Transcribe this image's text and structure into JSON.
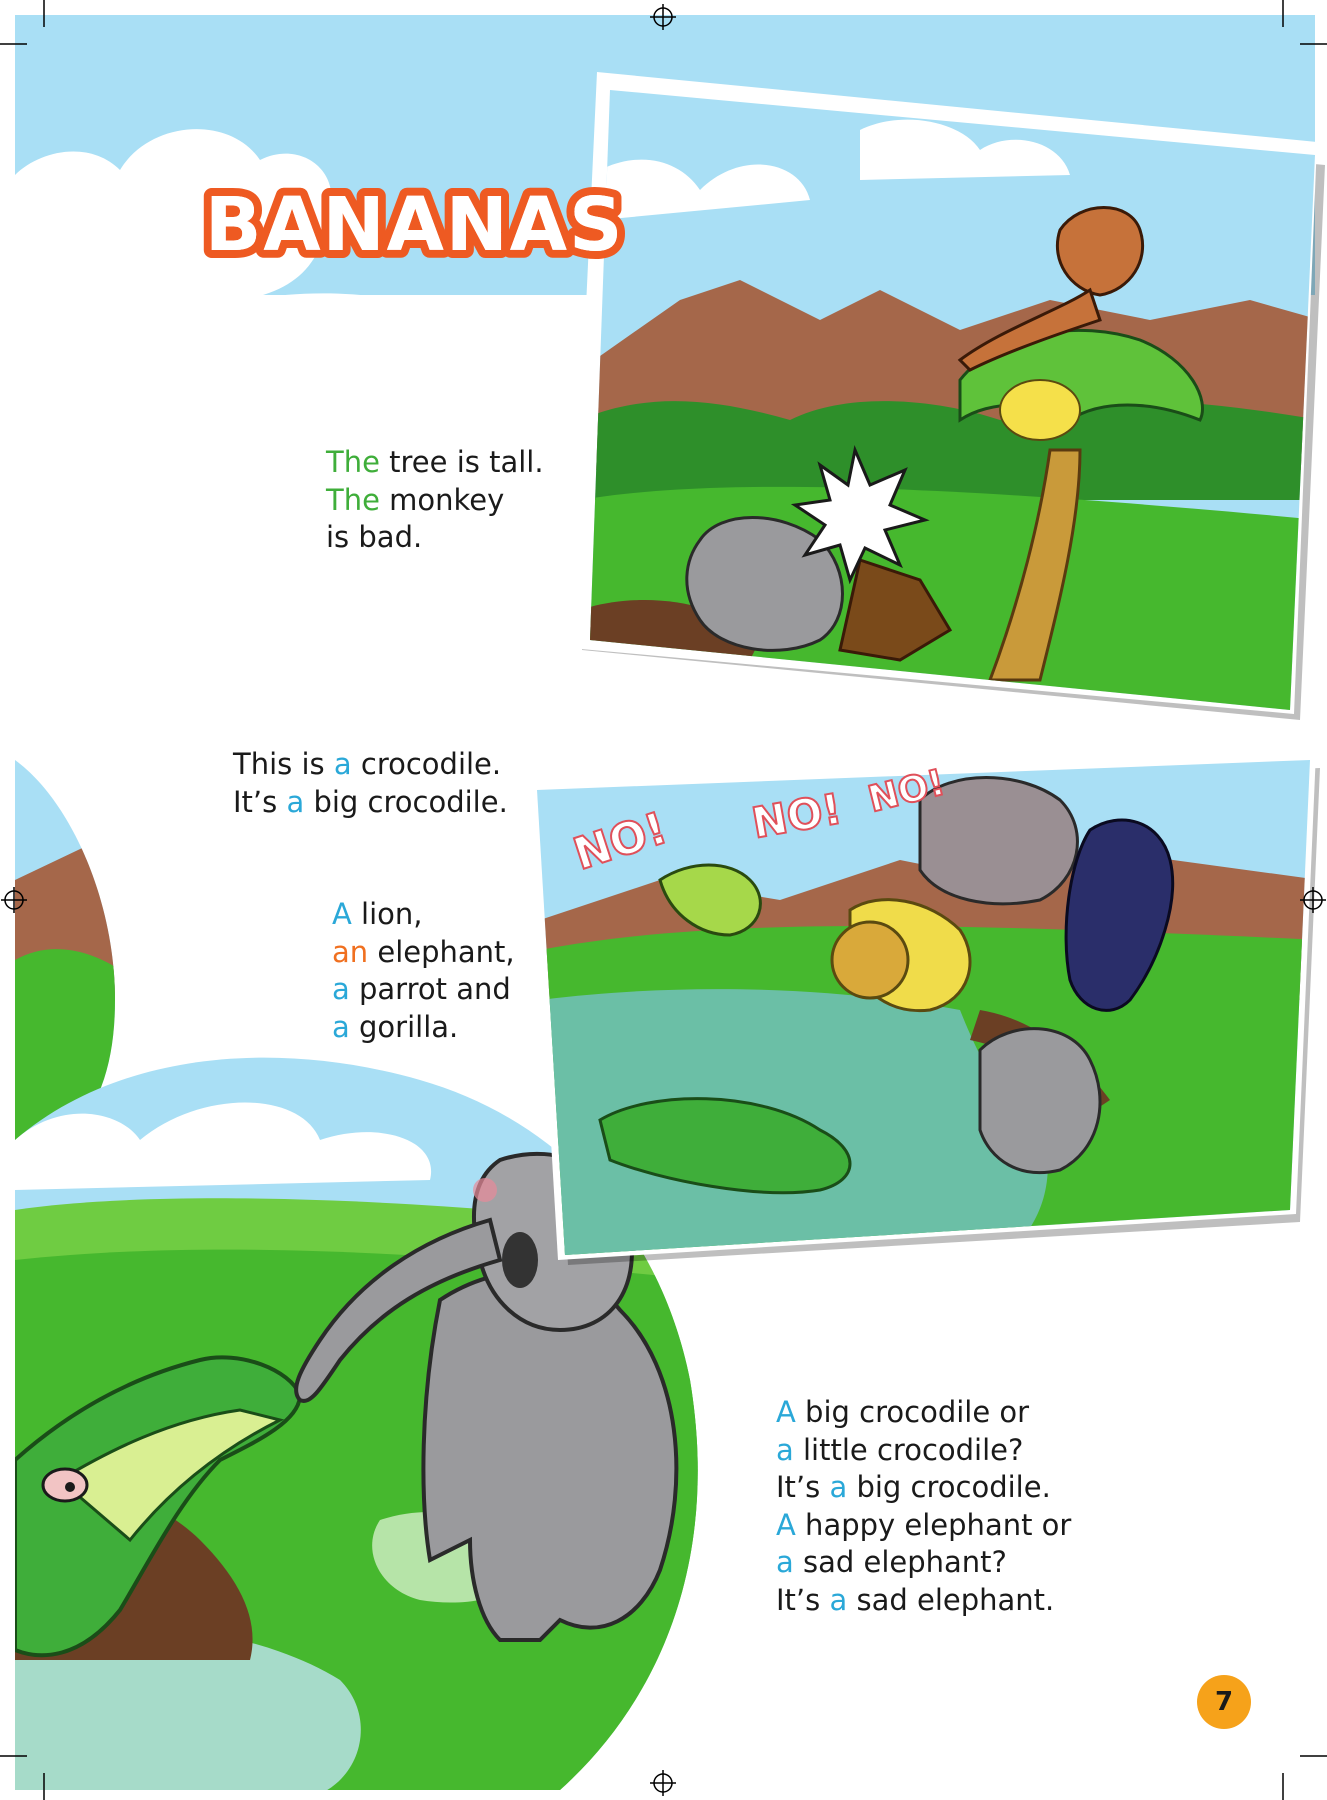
{
  "title": "BANANAS",
  "page_number": "7",
  "colors": {
    "sky": "#a9dff5",
    "grass": "#46b82e",
    "mountain": "#a5674a",
    "title_orange": "#ee5a22",
    "article_green": "#3fae3a",
    "article_blue": "#2aa8d8",
    "article_orange": "#f07020",
    "page_badge": "#f6a21a"
  },
  "panels": [
    {
      "bubbles": [],
      "description": "monkey in palm tree with bananas, elephant knocked down by tree stump"
    },
    {
      "bubbles": [
        "NO!",
        "NO!",
        "NO!"
      ],
      "description": "parrot, lion, hippo, gorilla and elephant falling into water near a crocodile"
    },
    {
      "bubbles": [],
      "description": "crocodile biting elephant trunk in river"
    }
  ],
  "text_blocks": {
    "block1": [
      [
        {
          "t": "The",
          "c": "g"
        },
        {
          "t": " tree is tall.",
          "c": ""
        }
      ],
      [
        {
          "t": "The",
          "c": "g"
        },
        {
          "t": " monkey",
          "c": ""
        }
      ],
      [
        {
          "t": "is bad.",
          "c": ""
        }
      ]
    ],
    "block2": [
      [
        {
          "t": "This is ",
          "c": ""
        },
        {
          "t": "a",
          "c": "b"
        },
        {
          "t": " crocodile.",
          "c": ""
        }
      ],
      [
        {
          "t": "It’s ",
          "c": ""
        },
        {
          "t": "a",
          "c": "b"
        },
        {
          "t": " big crocodile.",
          "c": ""
        }
      ]
    ],
    "block3": [
      [
        {
          "t": "A",
          "c": "b"
        },
        {
          "t": " lion,",
          "c": ""
        }
      ],
      [
        {
          "t": "an",
          "c": "o"
        },
        {
          "t": " elephant,",
          "c": ""
        }
      ],
      [
        {
          "t": "a",
          "c": "b"
        },
        {
          "t": " parrot and",
          "c": ""
        }
      ],
      [
        {
          "t": "a",
          "c": "b"
        },
        {
          "t": " gorilla.",
          "c": ""
        }
      ]
    ],
    "block4": [
      [
        {
          "t": "A",
          "c": "b"
        },
        {
          "t": " big crocodile or",
          "c": ""
        }
      ],
      [
        {
          "t": "a",
          "c": "b"
        },
        {
          "t": " little crocodile?",
          "c": ""
        }
      ],
      [
        {
          "t": "It’s ",
          "c": ""
        },
        {
          "t": "a",
          "c": "b"
        },
        {
          "t": " big crocodile.",
          "c": ""
        }
      ],
      [
        {
          "t": "A",
          "c": "b"
        },
        {
          "t": " happy elephant or",
          "c": ""
        }
      ],
      [
        {
          "t": "a",
          "c": "b"
        },
        {
          "t": " sad elephant?",
          "c": ""
        }
      ],
      [
        {
          "t": "It’s ",
          "c": ""
        },
        {
          "t": "a",
          "c": "b"
        },
        {
          "t": " sad elephant.",
          "c": ""
        }
      ]
    ]
  }
}
